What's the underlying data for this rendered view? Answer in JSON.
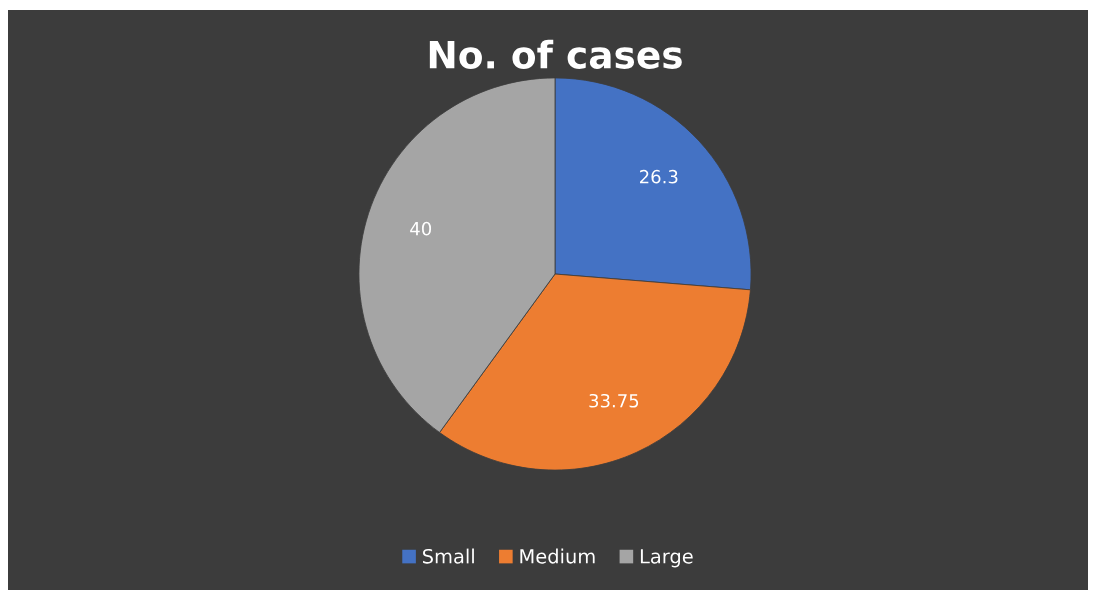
{
  "chart_data": {
    "type": "pie",
    "title": "No. of cases",
    "categories": [
      "Small",
      "Medium",
      "Large"
    ],
    "values": [
      26.3,
      33.75,
      40
    ],
    "colors": [
      "#4472c4",
      "#ed7d31",
      "#a5a5a5"
    ],
    "data_labels": true,
    "legend": "bottom"
  }
}
